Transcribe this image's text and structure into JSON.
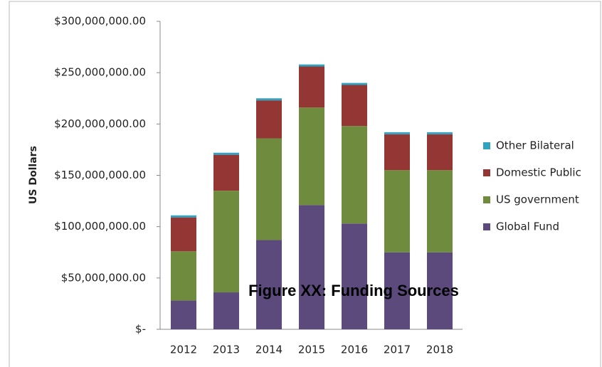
{
  "chart_data": {
    "type": "stacked_bar",
    "caption": "Figure XX: Funding Sources",
    "y_label": "US Dollars",
    "categories": [
      "2012",
      "2013",
      "2014",
      "2015",
      "2016",
      "2017",
      "2018"
    ],
    "series": [
      {
        "name": "Global Fund",
        "color": "#5d4a7c",
        "values": [
          28000000,
          36000000,
          87000000,
          121000000,
          103000000,
          75000000,
          75000000
        ]
      },
      {
        "name": "US government",
        "color": "#6f8b3e",
        "values": [
          48000000,
          99000000,
          99000000,
          95000000,
          95000000,
          80000000,
          80000000
        ]
      },
      {
        "name": "Domestic Public",
        "color": "#943634",
        "values": [
          33000000,
          35000000,
          37000000,
          40000000,
          40000000,
          35000000,
          35000000
        ]
      },
      {
        "name": "Other Bilateral",
        "color": "#31a2bf",
        "values": [
          2000000,
          2000000,
          2000000,
          2000000,
          2000000,
          2000000,
          2000000
        ]
      }
    ],
    "ylim": [
      0,
      300000000
    ],
    "yticks": [
      {
        "value": 0,
        "label": "$-"
      },
      {
        "value": 50000000,
        "label": "$50,000,000.00"
      },
      {
        "value": 100000000,
        "label": "$100,000,000.00"
      },
      {
        "value": 150000000,
        "label": "$150,000,000.00"
      },
      {
        "value": 200000000,
        "label": "$200,000,000.00"
      },
      {
        "value": 250000000,
        "label": "$250,000,000.00"
      },
      {
        "value": 300000000,
        "label": "$300,000,000.00"
      }
    ]
  }
}
